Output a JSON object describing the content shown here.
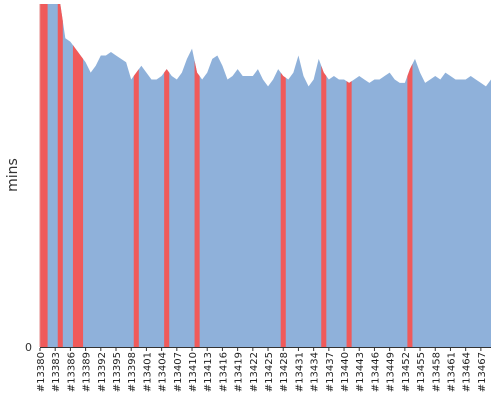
{
  "chart_data": {
    "type": "area",
    "ylabel": "mins",
    "ylim": [
      0,
      100
    ],
    "y_ticks": [
      "0"
    ],
    "x_tick_labels": [
      "#13380",
      "#13383",
      "#13386",
      "#13389",
      "#13392",
      "#13395",
      "#13398",
      "#13401",
      "#13404",
      "#13407",
      "#13410",
      "#13413",
      "#13416",
      "#13419",
      "#13422",
      "#13425",
      "#13428",
      "#13431",
      "#13434",
      "#13437",
      "#13440",
      "#13443",
      "#13446",
      "#13449",
      "#13452",
      "#13455",
      "#13458",
      "#13461",
      "#13464",
      "#13467"
    ],
    "x_start": 13380,
    "x_end": 13469,
    "colors": {
      "pass": "#8fb1da",
      "fail": "#f05a5a",
      "axis": "#333333"
    },
    "series": [
      {
        "status": "pass",
        "values": [
          100,
          100,
          100,
          100,
          100,
          90,
          89,
          87,
          85,
          83,
          80,
          82,
          85,
          85,
          86,
          85,
          84,
          83,
          78,
          80,
          82,
          80,
          78,
          78,
          79,
          81,
          79,
          78,
          80,
          84,
          87,
          80,
          78,
          80,
          84,
          85,
          82,
          78,
          79,
          81,
          79,
          79,
          79,
          81,
          78,
          76,
          78,
          81,
          79,
          78,
          80,
          85,
          79,
          76,
          78,
          84,
          80,
          78,
          79,
          78,
          78,
          77,
          78,
          79,
          78,
          77,
          78,
          78,
          79,
          80,
          78,
          77,
          77,
          81,
          84,
          80,
          77,
          78,
          79,
          78,
          80,
          79,
          78,
          78,
          78,
          79,
          78,
          77,
          76,
          78
        ]
      }
    ],
    "fail_builds": [
      "#13380",
      "#13381",
      "#13384",
      "#13387",
      "#13388",
      "#13399",
      "#13405",
      "#13411",
      "#13428",
      "#13436",
      "#13441",
      "#13453"
    ]
  }
}
